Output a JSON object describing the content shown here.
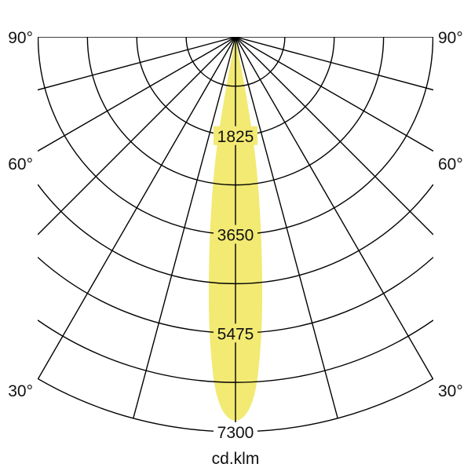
{
  "chart_data": {
    "type": "polar",
    "unit_label": "cd.klm",
    "radial_ticks": [
      1825,
      3650,
      5475,
      7300
    ],
    "radial_max": 7300,
    "ring_step": 912.5,
    "angle_labels": [
      "90°",
      "60°",
      "30°"
    ],
    "angle_lines_deg": [
      0,
      15,
      30,
      45,
      60,
      75,
      90
    ],
    "grid": true,
    "beam_color": "#f2ea73",
    "series": [
      {
        "angles_deg": [
          0,
          3,
          5,
          6.5,
          8,
          9.5,
          10.5,
          11.5
        ],
        "values": [
          7200,
          6800,
          5600,
          4400,
          3300,
          2300,
          1300,
          0
        ]
      }
    ]
  }
}
